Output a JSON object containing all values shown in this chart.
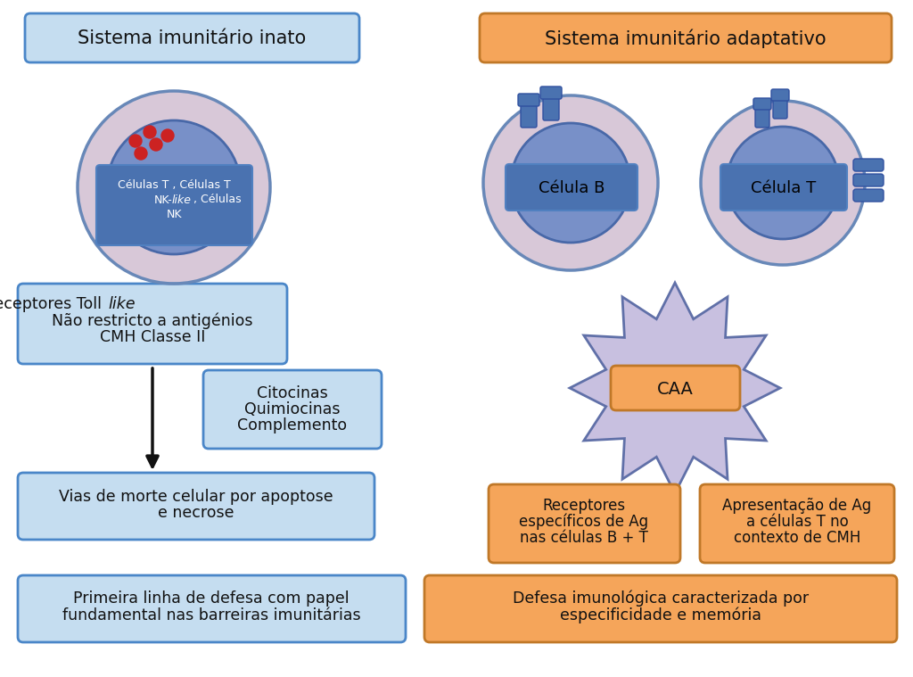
{
  "bg_color": "#ffffff",
  "light_blue_box": "#c5ddf0",
  "light_blue_border": "#4a86c8",
  "orange_box": "#f5a55a",
  "orange_border": "#c07828",
  "cell_outer": "#d8c8d8",
  "cell_outer_border": "#6888b8",
  "cell_inner": "#7890c8",
  "cell_inner_border": "#4868a8",
  "cell_nucleus_box": "#4a72b0",
  "cell_nucleus_box_border": "#5080c0",
  "receptor_color": "#4a72b0",
  "receptor_border": "#3050a0",
  "star_color": "#c8c0e0",
  "star_border": "#6070a8",
  "red_dot": "#cc2222",
  "arrow_color": "#111111",
  "text_color": "#111111",
  "white": "#ffffff",
  "inato_title": "Sistema imunitário inato",
  "adaptativo_title": "Sistema imunitário adaptativo",
  "toll_line1": "Receptores Toll ",
  "toll_like_italic": "like",
  "toll_line2": "Não restricto a antigénios",
  "toll_line3": "CMH Classe II",
  "citocinas_text": "Citocinas\nQuimiocinas\nComplemento",
  "apoptose_line1": "Vias de morte celular por apoptose",
  "apoptose_line2": "e necrose",
  "primeira_line1": "Primeira linha de defesa com papel",
  "primeira_line2": "fundamental nas barreiras imunitárias",
  "celula_b_text": "Célula B",
  "celula_t_text": "Célula T",
  "caa_text": "CAA",
  "nk_line1": "Células T , Células T",
  "nk_line2a": "NK-",
  "nk_line2b": "like",
  "nk_line2c": ", Células",
  "nk_line3": "NK",
  "receptores_esp_line1": "Receptores",
  "receptores_esp_line2": "específicos de Ag",
  "receptores_esp_line3": "nas células B + T",
  "apresentacao_line1": "Apresentação de Ag",
  "apresentacao_line2": "a células T no",
  "apresentacao_line3": "contexto de CMH",
  "defesa_line1": "Defesa imunológica caracterizada por",
  "defesa_line2": "especificidade e memória"
}
